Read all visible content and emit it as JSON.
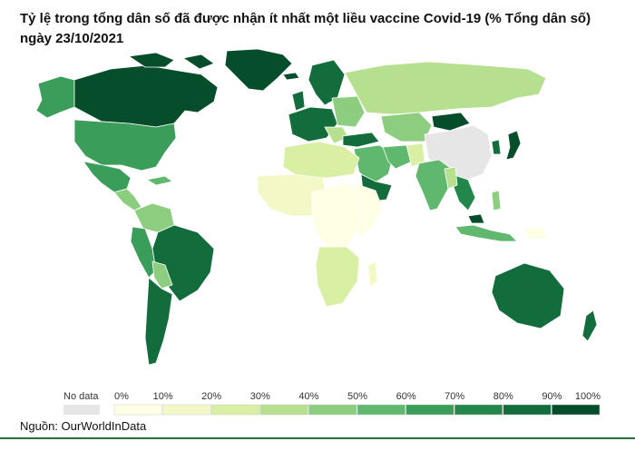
{
  "title": "Tỷ lệ trong tổng dân số đã được nhận ít nhất một liều vaccine Covid-19 (% Tổng dân số) ngày 23/10/2021",
  "legend": {
    "no_data_label": "No data",
    "no_data_color": "#e6e6e6",
    "ticks": [
      "0%",
      "10%",
      "20%",
      "30%",
      "40%",
      "50%",
      "60%",
      "70%",
      "80%",
      "90%",
      "100%"
    ],
    "colors": [
      "#ffffe5",
      "#f3f8c6",
      "#d9efa3",
      "#b6e08f",
      "#8dcd80",
      "#5fb86e",
      "#3a9e5a",
      "#23864a",
      "#136c3c",
      "#064d2b"
    ]
  },
  "source": "Nguồn: OurWorldInData"
}
